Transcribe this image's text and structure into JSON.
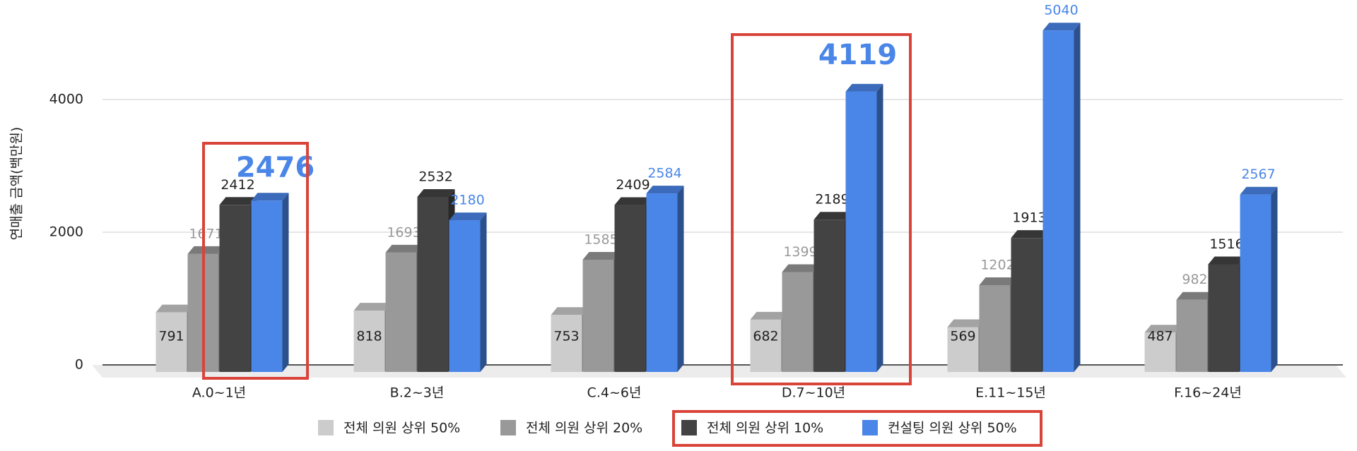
{
  "chart_data": {
    "type": "bar3d",
    "y_label": "연매출 금액(백만원)",
    "categories": [
      "A.0~1년",
      "B.2~3년",
      "C.4~6년",
      "D.7~10년",
      "E.11~15년",
      "F.16~24년"
    ],
    "series": [
      {
        "name": "전체 의원 상위 50%",
        "color": "#cccccc",
        "values": [
          791,
          818,
          753,
          682,
          569,
          487
        ]
      },
      {
        "name": "전체 의원 상위 20%",
        "color": "#999999",
        "values": [
          1671,
          1693,
          1585,
          1399,
          1202,
          982
        ]
      },
      {
        "name": "전체 의원 상위 10%",
        "color": "#434343",
        "values": [
          2412,
          2532,
          2409,
          2189,
          1913,
          1516
        ]
      },
      {
        "name": "컨설팅 의원 상위 50%",
        "color": "#4a86e8",
        "values": [
          2476,
          2180,
          2584,
          4119,
          5040,
          2567
        ]
      }
    ],
    "ylim": [
      0,
      5500
    ],
    "yticks": [
      0,
      2000,
      4000
    ],
    "grid": true,
    "legend": "bottom"
  }
}
